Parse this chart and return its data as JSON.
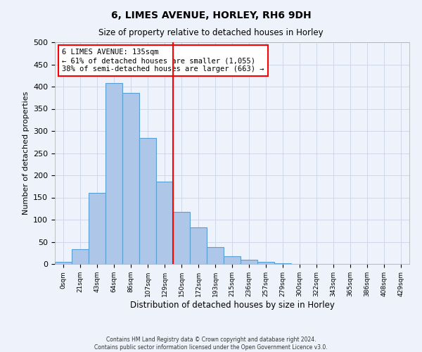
{
  "title": "6, LIMES AVENUE, HORLEY, RH6 9DH",
  "subtitle": "Size of property relative to detached houses in Horley",
  "xlabel": "Distribution of detached houses by size in Horley",
  "ylabel": "Number of detached properties",
  "footnote1": "Contains HM Land Registry data © Crown copyright and database right 2024.",
  "footnote2": "Contains public sector information licensed under the Open Government Licence v3.0.",
  "bar_labels": [
    "0sqm",
    "21sqm",
    "43sqm",
    "64sqm",
    "86sqm",
    "107sqm",
    "129sqm",
    "150sqm",
    "172sqm",
    "193sqm",
    "215sqm",
    "236sqm",
    "257sqm",
    "279sqm",
    "300sqm",
    "322sqm",
    "343sqm",
    "365sqm",
    "386sqm",
    "408sqm",
    "429sqm"
  ],
  "bar_values": [
    5,
    33,
    160,
    408,
    385,
    284,
    185,
    118,
    83,
    38,
    17,
    10,
    4,
    1,
    0,
    0,
    0,
    0,
    0,
    0,
    0
  ],
  "bar_color": "#aec6e8",
  "bar_edge_color": "#5a9fd4",
  "property_line_x": 6.5,
  "property_line_color": "red",
  "annotation_text": "6 LIMES AVENUE: 135sqm\n← 61% of detached houses are smaller (1,055)\n38% of semi-detached houses are larger (663) →",
  "annotation_box_color": "red",
  "ylim": [
    0,
    500
  ],
  "yticks": [
    0,
    50,
    100,
    150,
    200,
    250,
    300,
    350,
    400,
    450,
    500
  ],
  "grid_color": "#c8d4e8",
  "bg_color": "#eef2fa"
}
